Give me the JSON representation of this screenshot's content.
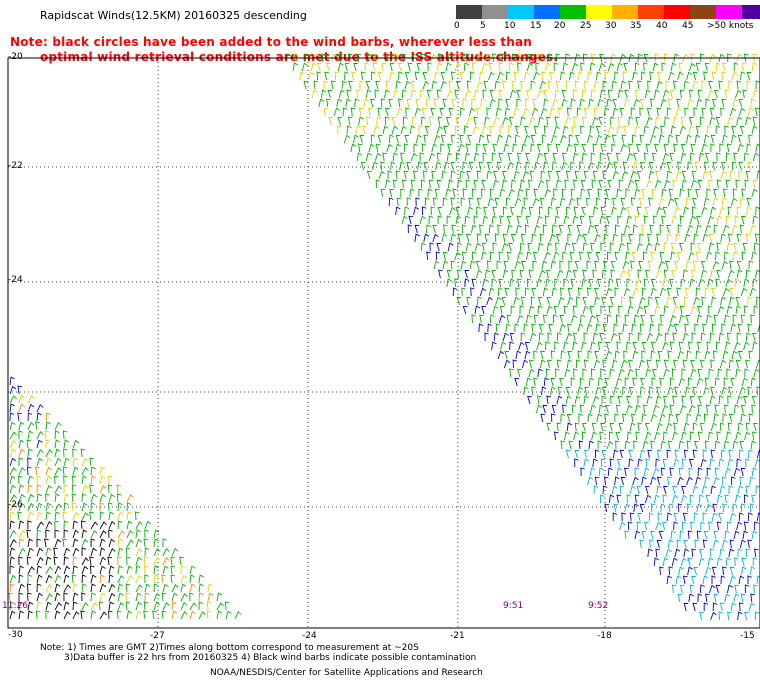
{
  "header": {
    "title": "Rapidscat Winds(12.5KM) 20160325 descending",
    "note_line1": "Note: black circles have been added to the wind barbs, wherever less than",
    "note_line2": "optimal wind retrieval conditions are met due to the ISS altitude changes."
  },
  "colorbar": {
    "units": "knots",
    "labels": [
      "0",
      "5",
      "10",
      "15",
      "20",
      "25",
      "30",
      "35",
      "40",
      "45",
      ">50 knots"
    ],
    "colors": [
      "#404040",
      "#909090",
      "#00c8ff",
      "#0070ff",
      "#00c000",
      "#ffff00",
      "#ffb000",
      "#ff4000",
      "#ff0000",
      "#8b4513",
      "#ff00ff",
      "#5000a0"
    ]
  },
  "axes": {
    "lat_labels": [
      "-20",
      "-22",
      "-24",
      "-26",
      "-28",
      "-30"
    ],
    "lon_labels": [
      "-27",
      "-24",
      "-21",
      "-18",
      "-15"
    ],
    "lat_range": [
      -30,
      -20
    ],
    "lon_range": [
      -30,
      -15
    ],
    "grid": true
  },
  "times": {
    "left": "11:26",
    "mid": "9:51",
    "right": "9:52"
  },
  "footer": {
    "line1": "Note: 1) Times are GMT 2)Times along bottom correspond to measurement at ~20S",
    "line2": "3)Data buffer is 22 hrs from 20160325 4) Black wind barbs indicate possible contamination",
    "line3": "NOAA/NESDIS/Center for Satellite Applications and Research"
  },
  "colors": {
    "barb_black": "#000000",
    "barb_blue": "#0000cc",
    "barb_cyan": "#00b0e0",
    "barb_green": "#00b000",
    "barb_yellow": "#e0d000",
    "barb_orange": "#ff8000",
    "grid": "#000000"
  }
}
